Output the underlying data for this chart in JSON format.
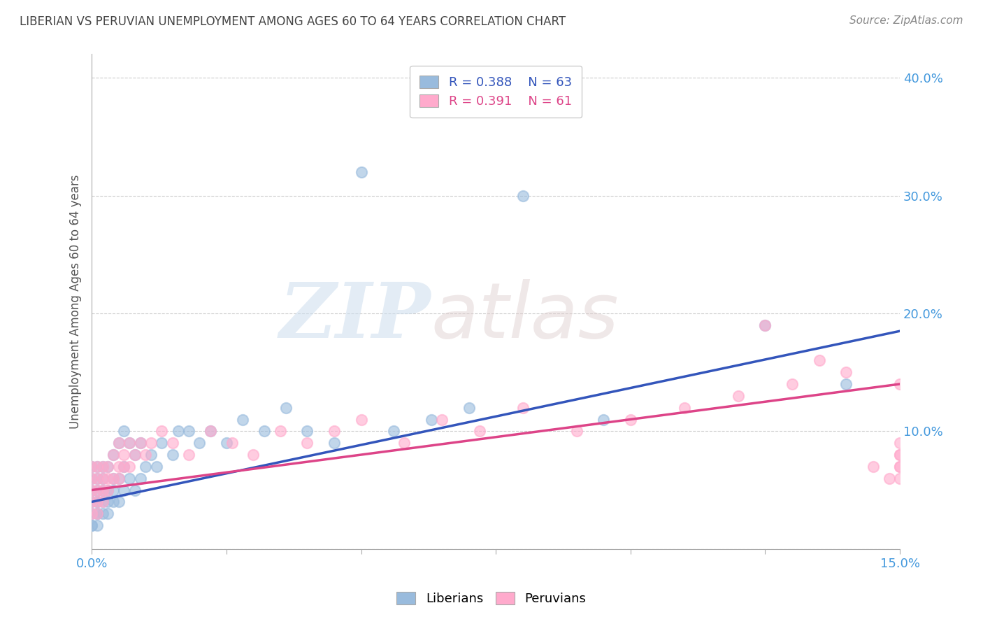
{
  "title": "LIBERIAN VS PERUVIAN UNEMPLOYMENT AMONG AGES 60 TO 64 YEARS CORRELATION CHART",
  "source_text": "Source: ZipAtlas.com",
  "ylabel": "Unemployment Among Ages 60 to 64 years",
  "xlim": [
    0.0,
    0.15
  ],
  "ylim": [
    0.0,
    0.42
  ],
  "xticks": [
    0.0,
    0.025,
    0.05,
    0.075,
    0.1,
    0.125,
    0.15
  ],
  "xticklabels_show": [
    "0.0%",
    "",
    "",
    "",
    "",
    "",
    "15.0%"
  ],
  "yticks": [
    0.0,
    0.1,
    0.2,
    0.3,
    0.4
  ],
  "yticklabels": [
    "",
    "10.0%",
    "20.0%",
    "30.0%",
    "40.0%"
  ],
  "grid_color": "#cccccc",
  "background_color": "#ffffff",
  "watermark_text1": "ZIP",
  "watermark_text2": "atlas",
  "legend_r_blue": "R = 0.388",
  "legend_n_blue": "N = 63",
  "legend_r_pink": "R = 0.391",
  "legend_n_pink": "N = 61",
  "blue_color": "#99bbdd",
  "pink_color": "#ffaacc",
  "line_blue_color": "#3355bb",
  "line_pink_color": "#dd4488",
  "label_color": "#4499dd",
  "title_color": "#444444",
  "ylabel_color": "#555555",
  "blue_line_y0": 0.04,
  "blue_line_y1": 0.185,
  "pink_line_y0": 0.05,
  "pink_line_y1": 0.14,
  "liberians_x": [
    0.0,
    0.0,
    0.0,
    0.0,
    0.0,
    0.0,
    0.0,
    0.001,
    0.001,
    0.001,
    0.001,
    0.001,
    0.001,
    0.001,
    0.001,
    0.002,
    0.002,
    0.002,
    0.002,
    0.002,
    0.003,
    0.003,
    0.003,
    0.003,
    0.004,
    0.004,
    0.004,
    0.004,
    0.005,
    0.005,
    0.005,
    0.006,
    0.006,
    0.006,
    0.007,
    0.007,
    0.008,
    0.008,
    0.009,
    0.009,
    0.01,
    0.011,
    0.012,
    0.013,
    0.015,
    0.016,
    0.018,
    0.02,
    0.022,
    0.025,
    0.028,
    0.032,
    0.036,
    0.04,
    0.045,
    0.05,
    0.056,
    0.063,
    0.07,
    0.08,
    0.095,
    0.125,
    0.14
  ],
  "liberians_y": [
    0.02,
    0.03,
    0.04,
    0.05,
    0.06,
    0.07,
    0.02,
    0.03,
    0.04,
    0.05,
    0.06,
    0.07,
    0.02,
    0.03,
    0.04,
    0.03,
    0.04,
    0.05,
    0.06,
    0.07,
    0.03,
    0.04,
    0.05,
    0.07,
    0.04,
    0.05,
    0.06,
    0.08,
    0.04,
    0.06,
    0.09,
    0.05,
    0.07,
    0.1,
    0.06,
    0.09,
    0.05,
    0.08,
    0.06,
    0.09,
    0.07,
    0.08,
    0.07,
    0.09,
    0.08,
    0.1,
    0.1,
    0.09,
    0.1,
    0.09,
    0.11,
    0.1,
    0.12,
    0.1,
    0.09,
    0.32,
    0.1,
    0.11,
    0.12,
    0.3,
    0.11,
    0.19,
    0.14
  ],
  "peruvians_x": [
    0.0,
    0.0,
    0.0,
    0.0,
    0.0,
    0.001,
    0.001,
    0.001,
    0.001,
    0.001,
    0.002,
    0.002,
    0.002,
    0.002,
    0.003,
    0.003,
    0.003,
    0.004,
    0.004,
    0.005,
    0.005,
    0.005,
    0.006,
    0.006,
    0.007,
    0.007,
    0.008,
    0.009,
    0.01,
    0.011,
    0.013,
    0.015,
    0.018,
    0.022,
    0.026,
    0.03,
    0.035,
    0.04,
    0.045,
    0.05,
    0.058,
    0.065,
    0.072,
    0.08,
    0.09,
    0.1,
    0.11,
    0.12,
    0.125,
    0.13,
    0.135,
    0.14,
    0.145,
    0.148,
    0.15,
    0.15,
    0.15,
    0.15,
    0.15,
    0.15,
    0.15
  ],
  "peruvians_y": [
    0.03,
    0.04,
    0.05,
    0.06,
    0.07,
    0.04,
    0.05,
    0.06,
    0.07,
    0.03,
    0.05,
    0.06,
    0.07,
    0.04,
    0.06,
    0.07,
    0.05,
    0.06,
    0.08,
    0.06,
    0.07,
    0.09,
    0.07,
    0.08,
    0.07,
    0.09,
    0.08,
    0.09,
    0.08,
    0.09,
    0.1,
    0.09,
    0.08,
    0.1,
    0.09,
    0.08,
    0.1,
    0.09,
    0.1,
    0.11,
    0.09,
    0.11,
    0.1,
    0.12,
    0.1,
    0.11,
    0.12,
    0.13,
    0.19,
    0.14,
    0.16,
    0.15,
    0.07,
    0.06,
    0.14,
    0.08,
    0.07,
    0.06,
    0.08,
    0.07,
    0.09
  ]
}
